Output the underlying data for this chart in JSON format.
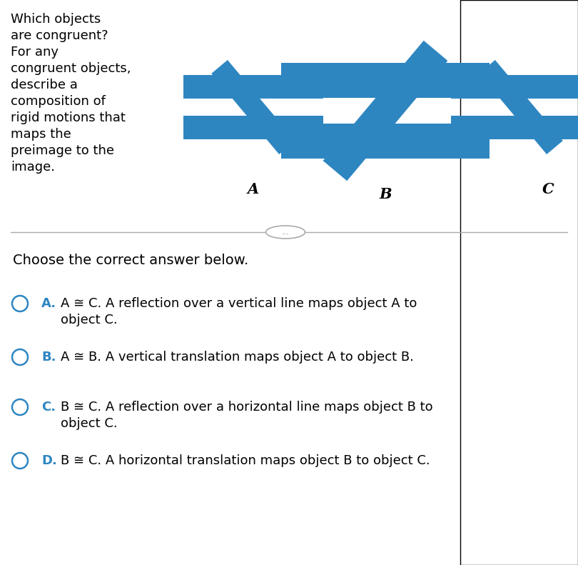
{
  "bg_color": "#ffffff",
  "shape_color": "#2e86c1",
  "question_text": [
    "Which objects",
    "are congruent?",
    "For any",
    "congruent objects,",
    "describe a",
    "composition of",
    "rigid motions that",
    "maps the",
    "preimage to the",
    "image."
  ],
  "label_A": "A",
  "label_B": "B",
  "label_C": "C",
  "answer_title": "Choose the correct answer below.",
  "answers": [
    {
      "letter": "A",
      "text1": "A ≅ C. A reflection over a vertical line maps object A to",
      "text2": "object C."
    },
    {
      "letter": "B",
      "text1": "A ≅ B. A vertical translation maps object A to object B.",
      "text2": ""
    },
    {
      "letter": "C",
      "text1": "B ≅ C. A reflection over a horizontal line maps object B to",
      "text2": "object C."
    },
    {
      "letter": "D",
      "text1": "B ≅ C. A horizontal translation maps object B to object C.",
      "text2": ""
    }
  ],
  "dots_text": "..."
}
